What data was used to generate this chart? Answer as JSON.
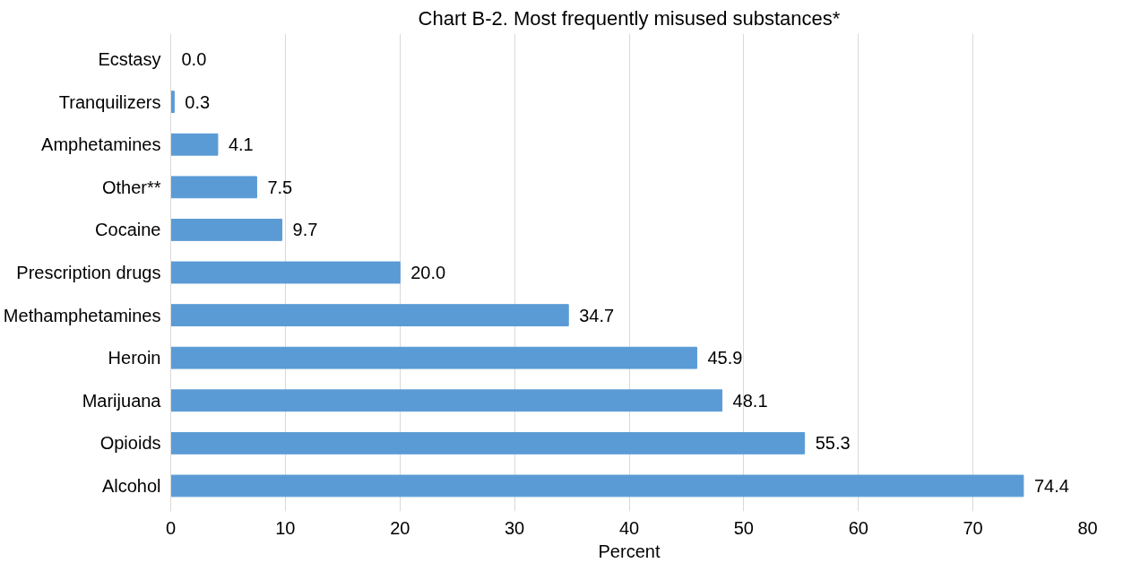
{
  "chart_data": {
    "type": "bar",
    "orientation": "horizontal",
    "title": "Chart B-2. Most frequently misused substances*",
    "xlabel": "Percent",
    "categories": [
      "Ecstasy",
      "Tranquilizers",
      "Amphetamines",
      "Other**",
      "Cocaine",
      "Prescription drugs",
      "Methamphetamines",
      "Heroin",
      "Marijuana",
      "Opioids",
      "Alcohol"
    ],
    "values": [
      0.0,
      0.3,
      4.1,
      7.5,
      9.7,
      20.0,
      34.7,
      45.9,
      48.1,
      55.3,
      74.4
    ],
    "color": "#5b9bd5",
    "xlim": [
      0,
      80
    ],
    "xticks": [
      0,
      10,
      20,
      30,
      40,
      50,
      60,
      70,
      80
    ],
    "grid": "x",
    "value_labels": [
      "0.0",
      "0.3",
      "4.1",
      "7.5",
      "9.7",
      "20.0",
      "34.7",
      "45.9",
      "48.1",
      "55.3",
      "74.4"
    ]
  }
}
